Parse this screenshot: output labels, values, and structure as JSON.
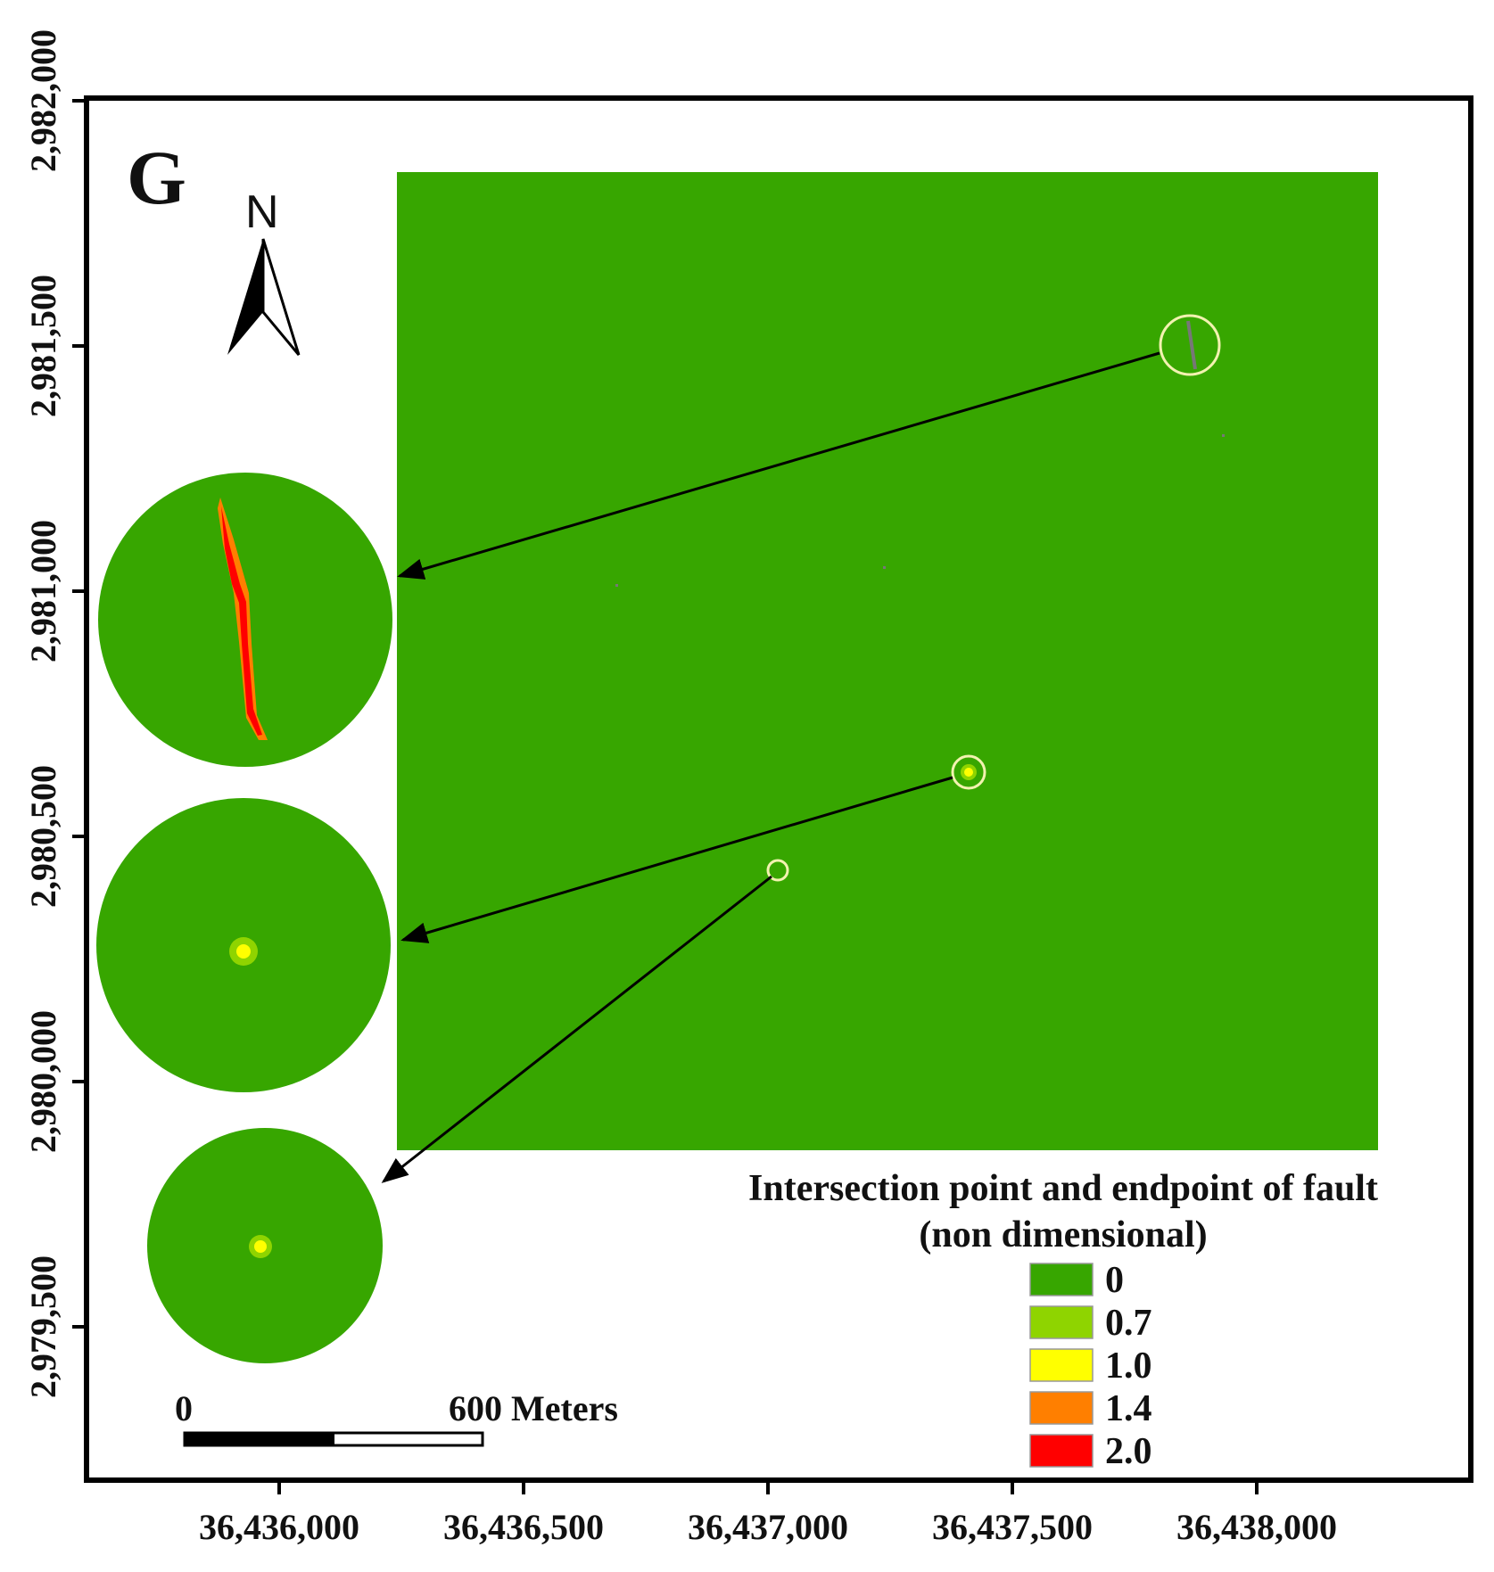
{
  "panel_label": "G",
  "north_label": "N",
  "axes": {
    "x_ticks": [
      "36,436,000",
      "36,436,500",
      "36,437,000",
      "36,437,500",
      "36,438,000"
    ],
    "y_ticks": [
      "2,982,000",
      "2,981,500",
      "2,981,000",
      "2,980,500",
      "2,980,000",
      "2,979,500"
    ]
  },
  "scale_bar": {
    "start_label": "0",
    "end_label": "600 Meters"
  },
  "legend": {
    "title_line1": "Intersection point and endpoint of fault",
    "title_line2": "(non dimensional)",
    "items": [
      {
        "label": "0",
        "color": "#37a600"
      },
      {
        "label": "0.7",
        "color": "#8fd400"
      },
      {
        "label": "1.0",
        "color": "#ffff00"
      },
      {
        "label": "1.4",
        "color": "#ff7f00"
      },
      {
        "label": "2.0",
        "color": "#ff0000"
      }
    ]
  },
  "colors": {
    "raster_background": "#37a600",
    "highlight_circle": "#f2f2b0",
    "fault_line": "#777777",
    "frame": "#000000"
  }
}
